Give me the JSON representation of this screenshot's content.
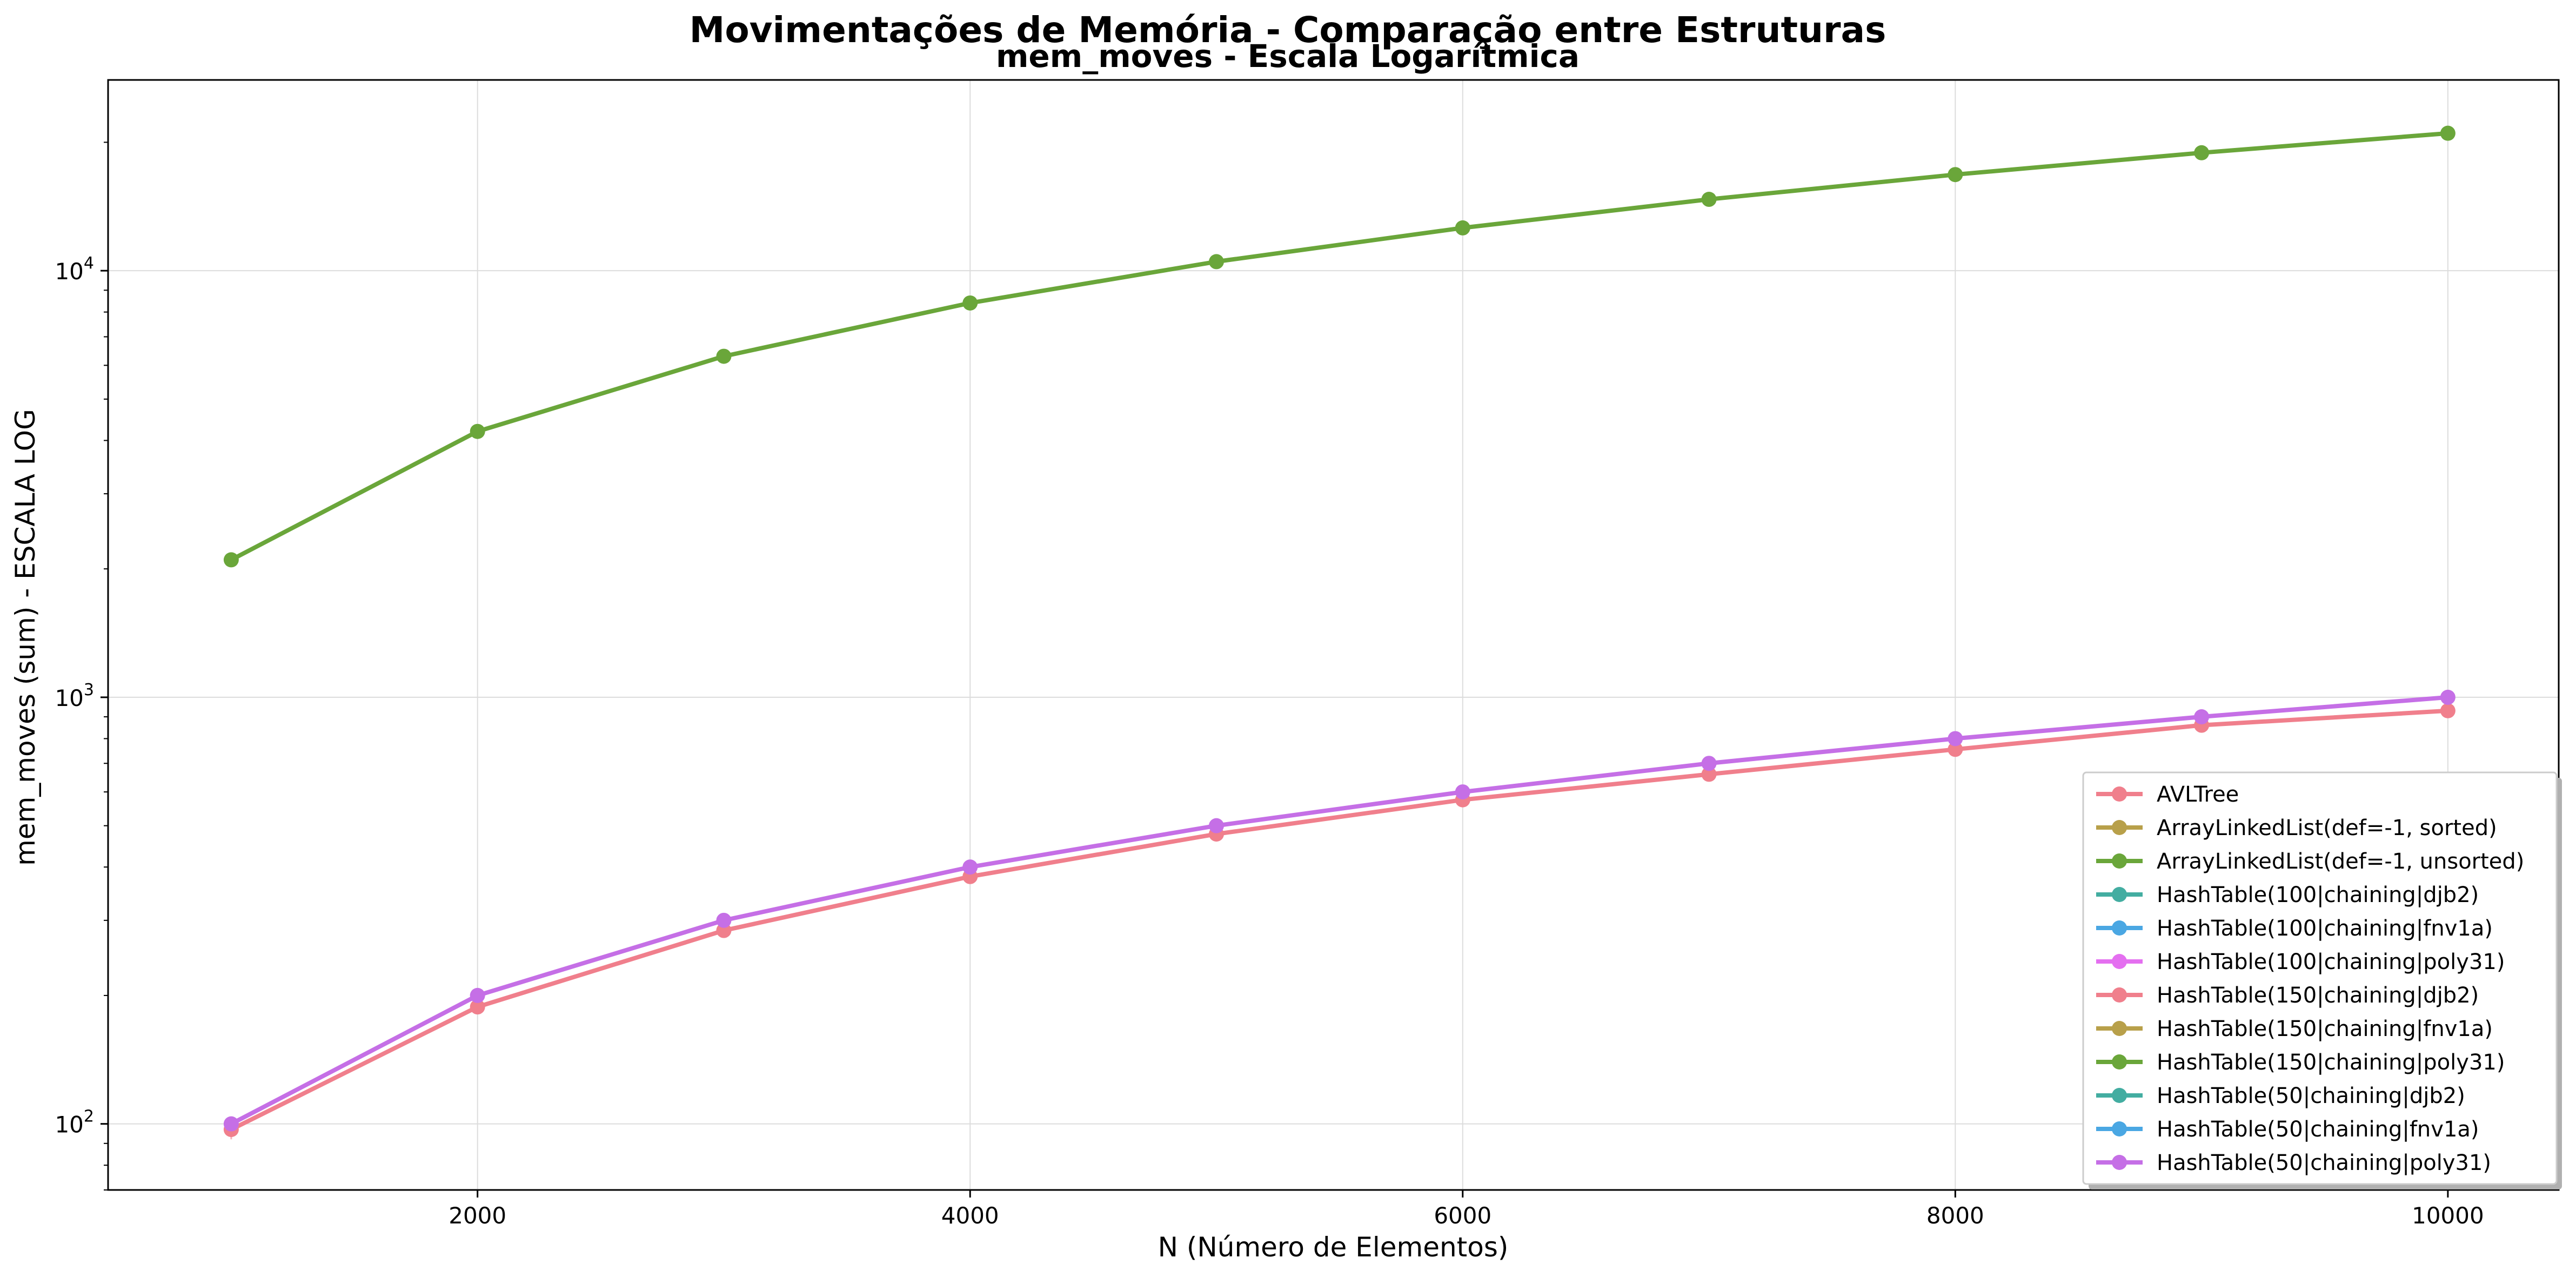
{
  "chart_data": {
    "type": "line",
    "title": "Movimentações de Memória - Comparação entre Estruturas",
    "subtitle": "mem_moves - Escala Logarítmica",
    "xlabel": "N (Número de Elementos)",
    "ylabel": "mem_moves (sum) - ESCALA LOG",
    "yscale": "log",
    "xlim": [
      500,
      10450
    ],
    "ylim": [
      70,
      28000
    ],
    "x_ticks": [
      2000,
      4000,
      6000,
      8000,
      10000
    ],
    "y_ticks": [
      {
        "value": 100,
        "base": "10",
        "exp": "2"
      },
      {
        "value": 1000,
        "base": "10",
        "exp": "3"
      },
      {
        "value": 10000,
        "base": "10",
        "exp": "4"
      }
    ],
    "grid": true,
    "legend_position": "lower-right",
    "x": [
      1000,
      2000,
      3000,
      4000,
      5000,
      6000,
      7000,
      8000,
      9000,
      10000
    ],
    "series": [
      {
        "name": "AVLTree",
        "color": "#f07f8c",
        "draw": true,
        "values": [
          97,
          188,
          284,
          380,
          478,
          575,
          660,
          755,
          860,
          930
        ],
        "err": [
          5,
          7,
          8,
          9,
          10,
          10,
          10,
          10,
          10,
          10
        ]
      },
      {
        "name": "ArrayLinkedList(def=-1, sorted)",
        "color": "#b8a04a",
        "draw": false,
        "values": [
          2100,
          4200,
          6300,
          8400,
          10500,
          12600,
          14700,
          16800,
          18900,
          21000
        ]
      },
      {
        "name": "ArrayLinkedList(def=-1, unsorted)",
        "color": "#6aa63a",
        "draw": true,
        "values": [
          2100,
          4200,
          6300,
          8400,
          10500,
          12600,
          14700,
          16800,
          18900,
          21000
        ]
      },
      {
        "name": "HashTable(100|chaining|djb2)",
        "color": "#43ada1",
        "draw": false,
        "values": [
          100,
          200,
          300,
          400,
          500,
          600,
          700,
          800,
          900,
          1000
        ]
      },
      {
        "name": "HashTable(100|chaining|fnv1a)",
        "color": "#4aa7e3",
        "draw": false,
        "values": [
          100,
          200,
          300,
          400,
          500,
          600,
          700,
          800,
          900,
          1000
        ]
      },
      {
        "name": "HashTable(100|chaining|poly31)",
        "color": "#e46ff0",
        "draw": false,
        "values": [
          100,
          200,
          300,
          400,
          500,
          600,
          700,
          800,
          900,
          1000
        ]
      },
      {
        "name": "HashTable(150|chaining|djb2)",
        "color": "#f07f8c",
        "draw": false,
        "values": [
          100,
          200,
          300,
          400,
          500,
          600,
          700,
          800,
          900,
          1000
        ]
      },
      {
        "name": "HashTable(150|chaining|fnv1a)",
        "color": "#b8a04a",
        "draw": false,
        "values": [
          100,
          200,
          300,
          400,
          500,
          600,
          700,
          800,
          900,
          1000
        ]
      },
      {
        "name": "HashTable(150|chaining|poly31)",
        "color": "#6aa63a",
        "draw": false,
        "values": [
          100,
          200,
          300,
          400,
          500,
          600,
          700,
          800,
          900,
          1000
        ]
      },
      {
        "name": "HashTable(50|chaining|djb2)",
        "color": "#43ada1",
        "draw": false,
        "values": [
          100,
          200,
          300,
          400,
          500,
          600,
          700,
          800,
          900,
          1000
        ]
      },
      {
        "name": "HashTable(50|chaining|fnv1a)",
        "color": "#4aa7e3",
        "draw": false,
        "values": [
          100,
          200,
          300,
          400,
          500,
          600,
          700,
          800,
          900,
          1000
        ]
      },
      {
        "name": "HashTable(50|chaining|poly31)",
        "color": "#c56fe6",
        "draw": true,
        "values": [
          100,
          200,
          300,
          400,
          500,
          600,
          700,
          800,
          900,
          1000
        ]
      }
    ]
  }
}
